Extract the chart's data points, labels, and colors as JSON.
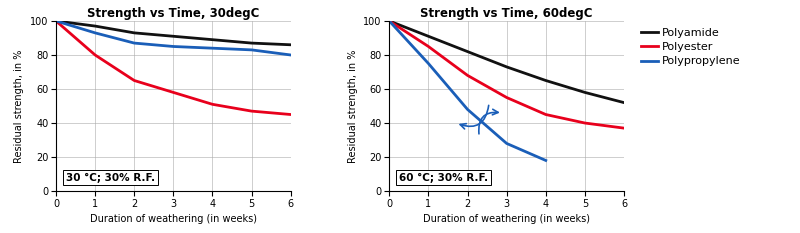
{
  "title1": "Strength vs Time, 30degC",
  "title2": "Strength vs Time, 60degC",
  "xlabel": "Duration of weathering (in weeks)",
  "ylabel": "Residual strength, in %",
  "annotation1": "30 °C; 30% R.F.",
  "annotation2": "60 °C; 30% R.F.",
  "xlim": [
    0,
    6
  ],
  "ylim": [
    0,
    100
  ],
  "xticks": [
    0,
    1,
    2,
    3,
    4,
    5,
    6
  ],
  "yticks": [
    0,
    20,
    40,
    60,
    80,
    100
  ],
  "legend_labels": [
    "Polyamide",
    "Polyester",
    "Polypropylene"
  ],
  "colors": [
    "#111111",
    "#e8001c",
    "#1a5eb8"
  ],
  "chart1": {
    "polyamide_x": [
      0,
      1,
      2,
      3,
      4,
      5,
      6
    ],
    "polyamide_y": [
      100,
      97,
      93,
      91,
      89,
      87,
      86
    ],
    "polyester_x": [
      0,
      1,
      2,
      3,
      4,
      5,
      6
    ],
    "polyester_y": [
      100,
      80,
      65,
      58,
      51,
      47,
      45
    ],
    "polyprop_x": [
      0,
      1,
      2,
      3,
      4,
      5,
      6
    ],
    "polyprop_y": [
      100,
      93,
      87,
      85,
      84,
      83,
      80
    ]
  },
  "chart2": {
    "polyamide_x": [
      0,
      1,
      2,
      3,
      4,
      5,
      6
    ],
    "polyamide_y": [
      100,
      91,
      82,
      73,
      65,
      58,
      52
    ],
    "polyester_x": [
      0,
      1,
      2,
      3,
      4,
      5,
      6
    ],
    "polyester_y": [
      100,
      85,
      68,
      55,
      45,
      40,
      37
    ],
    "polyprop_x": [
      0,
      1,
      2,
      3,
      4
    ],
    "polyprop_y": [
      100,
      75,
      48,
      28,
      18
    ]
  },
  "linewidth": 2.0,
  "title_fontsize": 8.5,
  "label_fontsize": 7,
  "tick_fontsize": 7,
  "legend_fontsize": 8,
  "annot_fontsize": 7.5
}
